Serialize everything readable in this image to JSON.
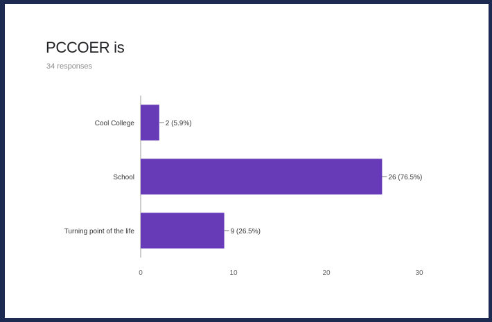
{
  "chart_data": {
    "type": "bar",
    "orientation": "horizontal",
    "title": "PCCOER is",
    "subtitle": "34 responses",
    "categories": [
      "Cool College",
      "School",
      "Turning point of the life"
    ],
    "values": [
      2,
      26,
      9
    ],
    "data_labels": [
      "2 (5.9%)",
      "26 (76.5%)",
      "9 (26.5%)"
    ],
    "xlim": [
      0,
      30
    ],
    "xticks": [
      "0",
      "10",
      "20",
      "30"
    ],
    "bar_color": "#673ab7",
    "grid": false
  },
  "colors": {
    "frame": "#1d2a52",
    "bar": "#673ab7",
    "axis": "#9e9e9e",
    "text": "#333333"
  }
}
